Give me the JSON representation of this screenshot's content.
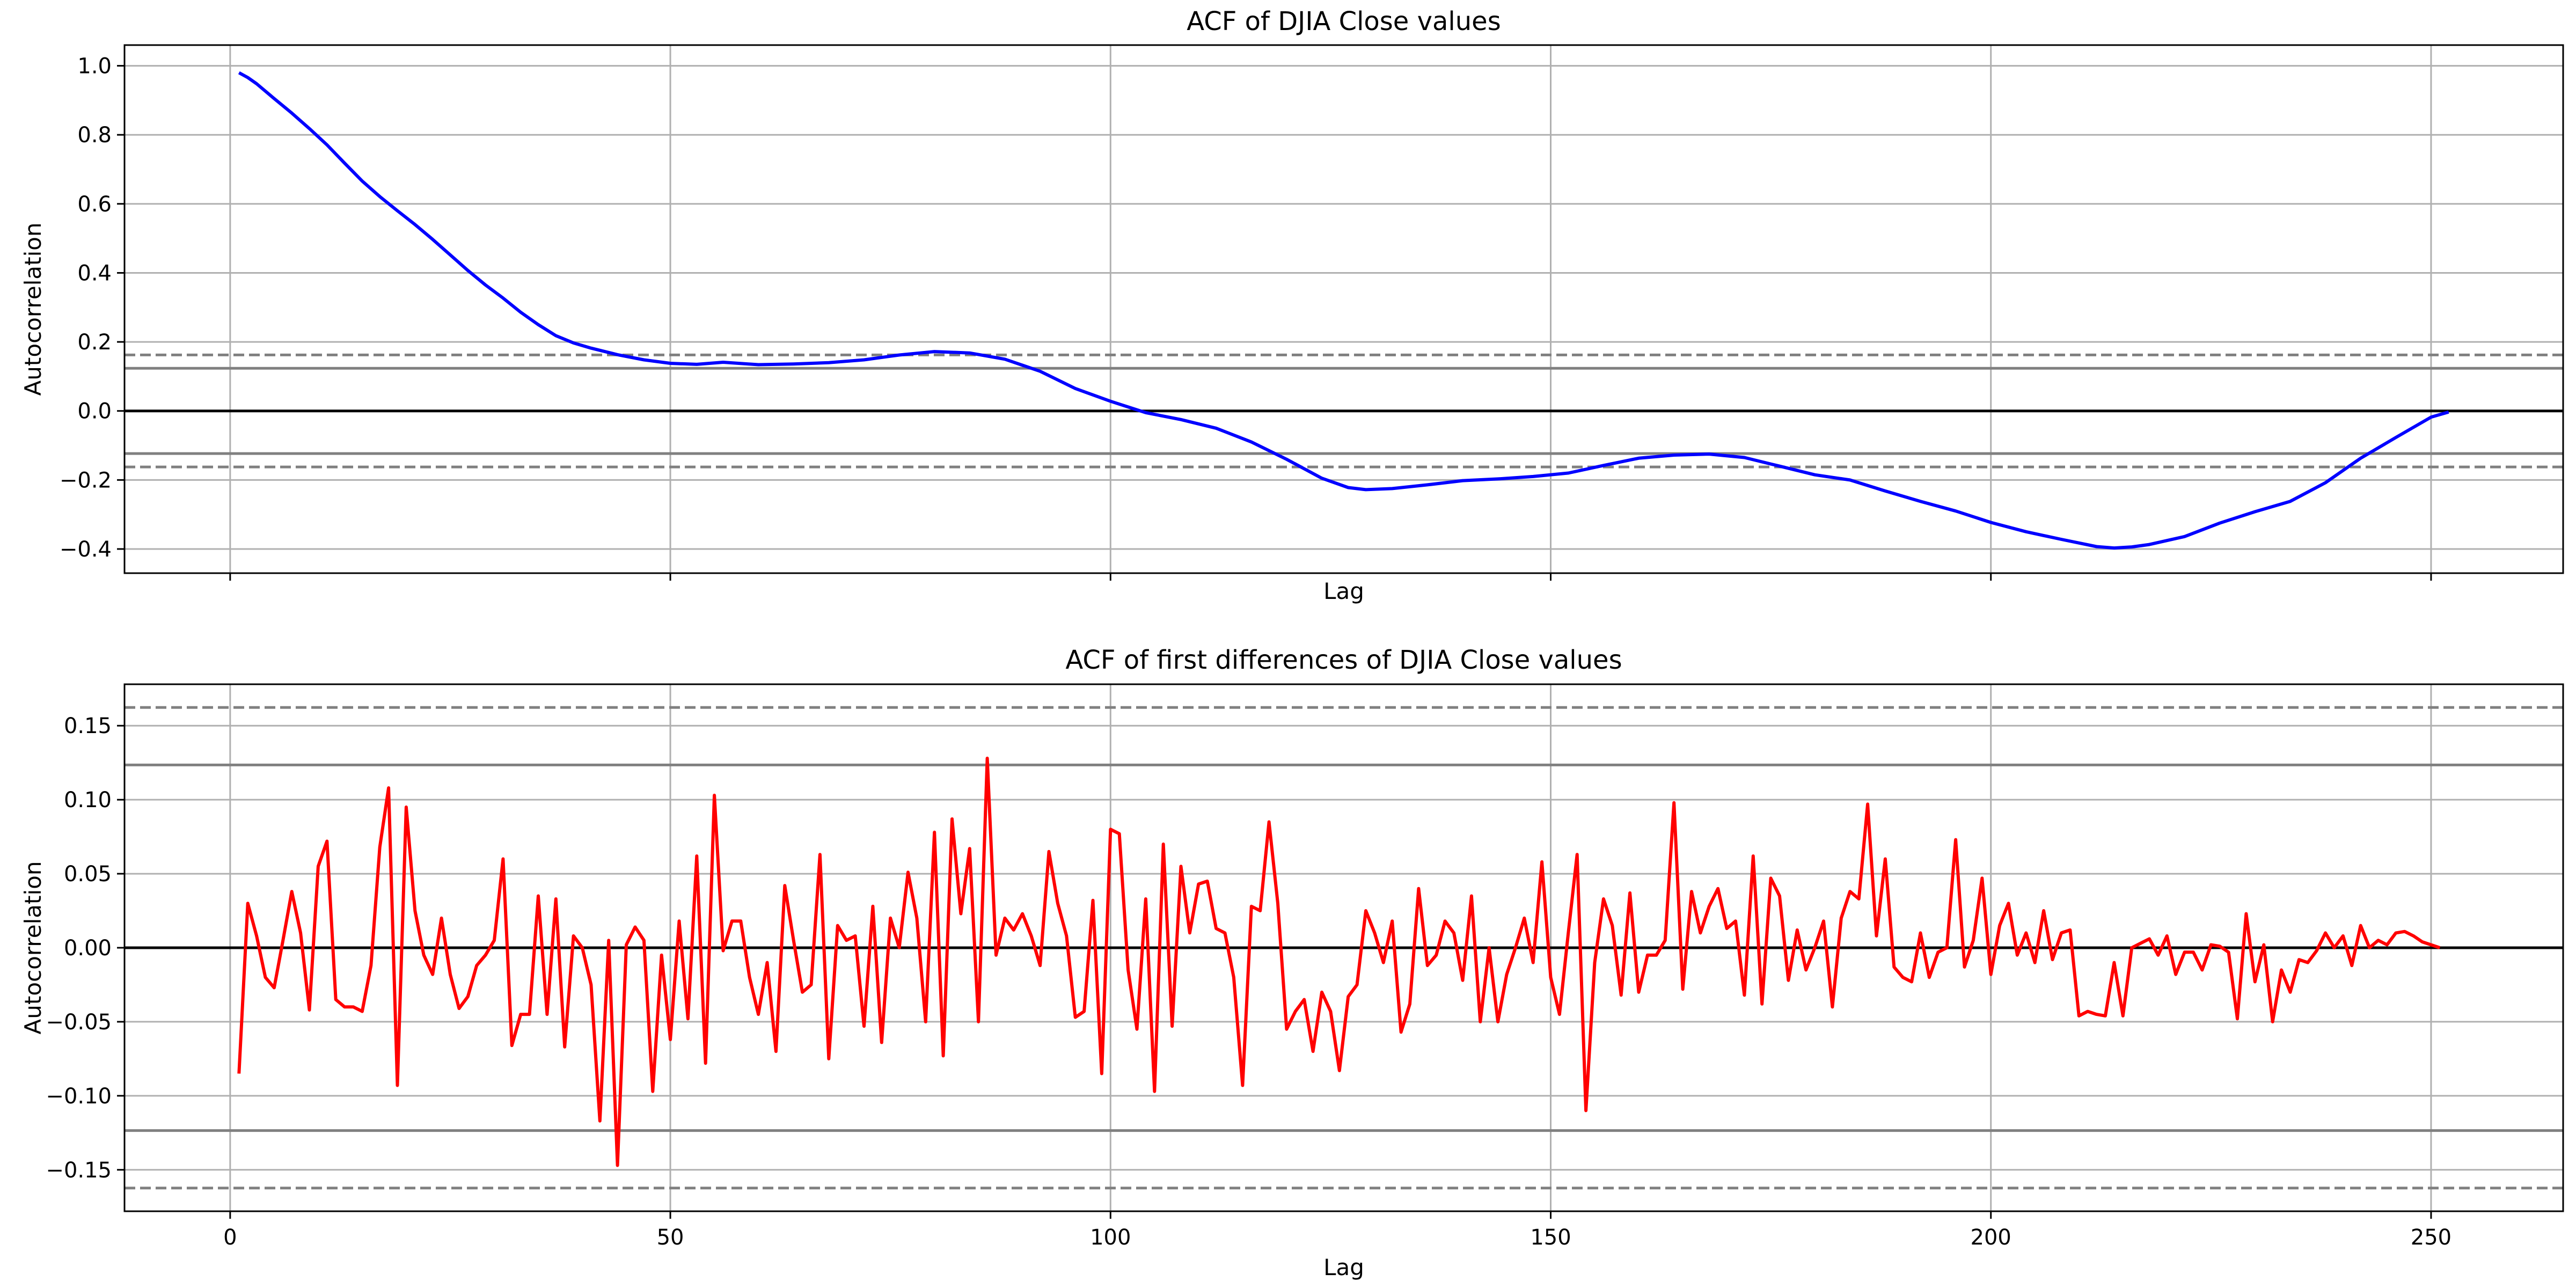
{
  "chart_data": [
    {
      "type": "line",
      "title": "ACF of DJIA Close values",
      "xlabel": "Lag",
      "ylabel": "Autocorrelation",
      "xlim": [
        -12,
        265
      ],
      "ylim": [
        -0.47,
        1.06
      ],
      "yticks": [
        -0.4,
        -0.2,
        0.0,
        0.2,
        0.4,
        0.6,
        0.8,
        1.0
      ],
      "ytick_labels": [
        "−0.4",
        "−0.2",
        "0.0",
        "0.2",
        "0.4",
        "0.6",
        "0.8",
        "1.0"
      ],
      "xticks": [
        0,
        50,
        100,
        150,
        200,
        250
      ],
      "xtick_labels": [
        "",
        "",
        "",
        "",
        "",
        ""
      ],
      "grid": true,
      "confidence_band_95": 0.1235,
      "confidence_band_99": 0.1623,
      "line_color": "#0000ff",
      "series": [
        {
          "x": [
            1,
            2,
            3,
            5,
            7,
            9,
            11,
            13,
            15,
            17,
            19,
            21,
            23,
            25,
            27,
            29,
            31,
            33,
            35,
            37,
            39,
            41,
            44,
            47,
            50,
            53,
            56,
            60,
            64,
            68,
            72,
            76,
            80,
            84,
            88,
            92,
            96,
            100,
            104,
            108,
            112,
            116,
            120,
            124,
            127,
            129,
            132,
            136,
            140,
            144,
            148,
            152,
            156,
            160,
            164,
            168,
            172,
            176,
            180,
            184,
            188,
            192,
            196,
            200,
            204,
            208,
            212,
            214,
            216,
            218,
            222,
            226,
            230,
            234,
            238,
            242,
            246,
            250,
            252
          ],
          "values": [
            0.98,
            0.966,
            0.948,
            0.905,
            0.863,
            0.818,
            0.771,
            0.718,
            0.666,
            0.621,
            0.58,
            0.54,
            0.497,
            0.452,
            0.407,
            0.365,
            0.327,
            0.286,
            0.25,
            0.218,
            0.197,
            0.182,
            0.163,
            0.148,
            0.138,
            0.135,
            0.141,
            0.134,
            0.136,
            0.14,
            0.148,
            0.162,
            0.172,
            0.168,
            0.15,
            0.115,
            0.065,
            0.028,
            -0.005,
            -0.025,
            -0.05,
            -0.09,
            -0.14,
            -0.195,
            -0.222,
            -0.228,
            -0.225,
            -0.214,
            -0.202,
            -0.197,
            -0.19,
            -0.18,
            -0.158,
            -0.137,
            -0.128,
            -0.125,
            -0.135,
            -0.16,
            -0.185,
            -0.2,
            -0.232,
            -0.262,
            -0.29,
            -0.323,
            -0.35,
            -0.372,
            -0.393,
            -0.397,
            -0.394,
            -0.387,
            -0.364,
            -0.325,
            -0.292,
            -0.262,
            -0.208,
            -0.137,
            -0.077,
            -0.018,
            -0.003
          ]
        }
      ]
    },
    {
      "type": "line",
      "title": "ACF of first differences of DJIA Close values",
      "xlabel": "Lag",
      "ylabel": "Autocorrelation",
      "xlim": [
        -12,
        265
      ],
      "ylim": [
        -0.178,
        0.178
      ],
      "yticks": [
        -0.15,
        -0.1,
        -0.05,
        0.0,
        0.05,
        0.1,
        0.15
      ],
      "ytick_labels": [
        "−0.15",
        "−0.10",
        "−0.05",
        "0.00",
        "0.05",
        "0.10",
        "0.15"
      ],
      "xticks": [
        0,
        50,
        100,
        150,
        200,
        250
      ],
      "xtick_labels": [
        "0",
        "50",
        "100",
        "150",
        "200",
        "250"
      ],
      "grid": true,
      "confidence_band_95": 0.1235,
      "confidence_band_99": 0.1623,
      "line_color": "#ff0000",
      "series": [
        {
          "x": [
            1,
            2,
            3,
            4,
            5,
            6,
            7,
            8,
            9,
            10,
            11,
            12,
            13,
            14,
            15,
            16,
            17,
            18,
            19,
            20,
            21,
            22,
            23,
            24,
            25,
            26,
            27,
            28,
            29,
            30,
            31,
            32,
            33,
            34,
            35,
            36,
            37,
            38,
            39,
            40,
            41,
            42,
            43,
            44,
            45,
            46,
            47,
            48,
            49,
            50,
            51,
            52,
            53,
            54,
            55,
            56,
            57,
            58,
            59,
            60,
            61,
            62,
            63,
            64,
            65,
            66,
            67,
            68,
            69,
            70,
            71,
            72,
            73,
            74,
            75,
            76,
            77,
            78,
            79,
            80,
            81,
            82,
            83,
            84,
            85,
            86,
            87,
            88,
            89,
            90,
            91,
            92,
            93,
            94,
            95,
            96,
            97,
            98,
            99,
            100,
            101,
            102,
            103,
            104,
            105,
            106,
            107,
            108,
            109,
            110,
            111,
            112,
            113,
            114,
            115,
            116,
            117,
            118,
            119,
            120,
            121,
            122,
            123,
            124,
            125,
            126,
            127,
            128,
            129,
            130,
            131,
            132,
            133,
            134,
            135,
            136,
            137,
            138,
            139,
            140,
            141,
            142,
            143,
            144,
            145,
            146,
            147,
            148,
            149,
            150,
            151,
            152,
            153,
            154,
            155,
            156,
            157,
            158,
            159,
            160,
            161,
            162,
            163,
            164,
            165,
            166,
            167,
            168,
            169,
            170,
            171,
            172,
            173,
            174,
            175,
            176,
            177,
            178,
            179,
            180,
            181,
            182,
            183,
            184,
            185,
            186,
            187,
            188,
            189,
            190,
            191,
            192,
            193,
            194,
            195,
            196,
            197,
            198,
            199,
            200,
            201,
            202,
            203,
            204,
            205,
            206,
            207,
            208,
            209,
            210,
            211,
            212,
            213,
            214,
            215,
            216,
            217,
            218,
            219,
            220,
            221,
            222,
            223,
            224,
            225,
            226,
            227,
            228,
            229,
            230,
            231,
            232,
            233,
            234,
            235,
            236,
            237,
            238,
            239,
            240,
            241,
            242,
            243,
            244,
            245,
            246,
            247,
            248,
            249,
            250,
            251
          ],
          "values": [
            -0.085,
            0.03,
            0.008,
            -0.02,
            -0.027,
            0.005,
            0.038,
            0.01,
            -0.042,
            0.055,
            0.072,
            -0.035,
            -0.04,
            -0.04,
            -0.043,
            -0.012,
            0.068,
            0.108,
            -0.093,
            0.095,
            0.025,
            -0.005,
            -0.018,
            0.02,
            -0.018,
            -0.041,
            -0.033,
            -0.012,
            -0.005,
            0.005,
            0.06,
            -0.066,
            -0.045,
            -0.045,
            0.035,
            -0.045,
            0.033,
            -0.067,
            0.008,
            0.0,
            -0.025,
            -0.117,
            0.005,
            -0.147,
            0.002,
            0.014,
            0.005,
            -0.097,
            -0.005,
            -0.062,
            0.018,
            -0.048,
            0.062,
            -0.078,
            0.103,
            -0.002,
            0.018,
            0.018,
            -0.02,
            -0.045,
            -0.01,
            -0.07,
            0.042,
            0.005,
            -0.03,
            -0.025,
            0.063,
            -0.075,
            0.015,
            0.005,
            0.008,
            -0.053,
            0.028,
            -0.064,
            0.02,
            0.0,
            0.051,
            0.02,
            -0.05,
            0.078,
            -0.073,
            0.087,
            0.023,
            0.067,
            -0.05,
            0.128,
            -0.005,
            0.02,
            0.012,
            0.023,
            0.008,
            -0.012,
            0.065,
            0.03,
            0.008,
            -0.047,
            -0.043,
            0.032,
            -0.085,
            0.08,
            0.077,
            -0.015,
            -0.055,
            0.033,
            -0.097,
            0.07,
            -0.053,
            0.055,
            0.01,
            0.043,
            0.045,
            0.013,
            0.01,
            -0.02,
            -0.093,
            0.028,
            0.025,
            0.085,
            0.03,
            -0.055,
            -0.043,
            -0.035,
            -0.07,
            -0.03,
            -0.043,
            -0.083,
            -0.033,
            -0.025,
            0.025,
            0.01,
            -0.01,
            0.018,
            -0.057,
            -0.038,
            0.04,
            -0.012,
            -0.005,
            0.018,
            0.01,
            -0.022,
            0.035,
            -0.05,
            0.0,
            -0.05,
            -0.018,
            0.0,
            0.02,
            -0.01,
            0.058,
            -0.02,
            -0.045,
            0.01,
            0.063,
            -0.11,
            -0.01,
            0.033,
            0.015,
            -0.032,
            0.037,
            -0.03,
            -0.005,
            -0.005,
            0.005,
            0.098,
            -0.028,
            0.038,
            0.01,
            0.028,
            0.04,
            0.013,
            0.018,
            -0.032,
            0.062,
            -0.038,
            0.047,
            0.035,
            -0.022,
            0.012,
            -0.015,
            0.0,
            0.018,
            -0.04,
            0.02,
            0.038,
            0.033,
            0.097,
            0.008,
            0.06,
            -0.013,
            -0.02,
            -0.023,
            0.01,
            -0.02,
            -0.003,
            0.0,
            0.073,
            -0.013,
            0.005,
            0.047,
            -0.018,
            0.015,
            0.03,
            -0.005,
            0.01,
            -0.01,
            0.025,
            -0.008,
            0.01,
            0.012,
            -0.046,
            -0.043,
            -0.045,
            -0.046,
            -0.01,
            -0.046,
            0.0,
            0.003,
            0.006,
            -0.005,
            0.008,
            -0.018,
            -0.003,
            -0.003,
            -0.015,
            0.002,
            0.001,
            -0.003,
            -0.048,
            0.023,
            -0.023,
            0.002,
            -0.05,
            -0.015,
            -0.03,
            -0.008,
            -0.01,
            -0.002,
            0.01,
            0.0,
            0.008,
            -0.012,
            0.015,
            0.0,
            0.005,
            0.002,
            0.01,
            0.011,
            0.008,
            0.004,
            0.002,
            0.0
          ]
        }
      ]
    }
  ]
}
